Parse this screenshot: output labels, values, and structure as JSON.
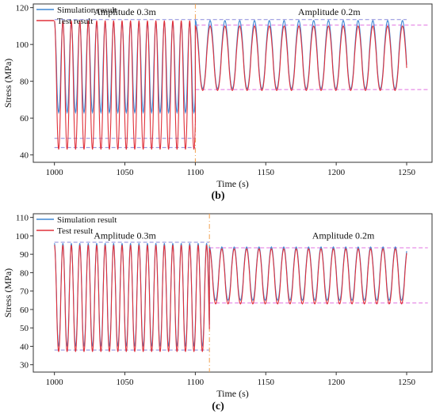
{
  "chart_data": [
    {
      "type": "line",
      "panel_label": "(b)",
      "xlabel": "Time (s)",
      "ylabel": "Stress (MPa)",
      "xlim": [
        985,
        1268
      ],
      "ylim": [
        36,
        122
      ],
      "xticks": [
        1000,
        1050,
        1100,
        1150,
        1200,
        1250
      ],
      "yticks": [
        40,
        60,
        80,
        100,
        120
      ],
      "legend": {
        "placement": "top-left",
        "entries": [
          "Simulation result",
          "Test result"
        ]
      },
      "annotations": [
        {
          "text": "Amplitude 0.3m",
          "x": 1050,
          "y": 116
        },
        {
          "text": "Amplitude 0.2m",
          "x": 1195,
          "y": 116
        }
      ],
      "divider_x": 1100,
      "segments": [
        {
          "x_start": 1000,
          "x_end": 1100,
          "period": 6.0,
          "sim_max": 112,
          "sim_min": 63,
          "test_max": 113,
          "test_min": 43
        },
        {
          "x_start": 1100,
          "x_end": 1250,
          "period": 10.5,
          "sim_max": 113,
          "sim_min": 76,
          "test_max": 110,
          "test_min": 75
        }
      ],
      "reference_lines": [
        {
          "y": 113.5,
          "x_start": 1000,
          "x_end": 1250,
          "color": "#8a8adb"
        },
        {
          "y": 49,
          "x_start": 1000,
          "x_end": 1100,
          "color": "#8a8adb"
        },
        {
          "y": 44,
          "x_start": 1000,
          "x_end": 1100,
          "color": "#8a8adb"
        },
        {
          "y": 110.5,
          "x_start": 1100,
          "x_end": 1265,
          "color": "#e070e0"
        },
        {
          "y": 75.5,
          "x_start": 1100,
          "x_end": 1265,
          "color": "#e070e0"
        }
      ],
      "series": [
        {
          "name": "Simulation result",
          "color": "#3f87d4"
        },
        {
          "name": "Test result",
          "color": "#e0303a"
        }
      ]
    },
    {
      "type": "line",
      "panel_label": "(c)",
      "xlabel": "Time (s)",
      "ylabel": "Stress (MPa)",
      "xlim": [
        985,
        1268
      ],
      "ylim": [
        26,
        112
      ],
      "xticks": [
        1000,
        1050,
        1100,
        1150,
        1200,
        1250
      ],
      "yticks": [
        30,
        40,
        50,
        60,
        70,
        80,
        90,
        100,
        110
      ],
      "legend": {
        "placement": "top-left",
        "entries": [
          "Simulation result",
          "Test result"
        ]
      },
      "annotations": [
        {
          "text": "Amplitude 0.3m",
          "x": 1050,
          "y": 98.5
        },
        {
          "text": "Amplitude 0.2m",
          "x": 1205,
          "y": 98.5
        }
      ],
      "divider_x": 1110,
      "segments": [
        {
          "x_start": 1000,
          "x_end": 1110,
          "period": 6.0,
          "sim_max": 96,
          "sim_min": 40,
          "test_max": 95,
          "test_min": 37
        },
        {
          "x_start": 1110,
          "x_end": 1250,
          "period": 8.8,
          "sim_max": 94,
          "sim_min": 65,
          "test_max": 93,
          "test_min": 63
        }
      ],
      "reference_lines": [
        {
          "y": 96.5,
          "x_start": 1000,
          "x_end": 1110,
          "color": "#8a8adb"
        },
        {
          "y": 38,
          "x_start": 1000,
          "x_end": 1110,
          "color": "#8a8adb"
        },
        {
          "y": 93.5,
          "x_start": 1110,
          "x_end": 1265,
          "color": "#e070e0"
        },
        {
          "y": 63.5,
          "x_start": 1110,
          "x_end": 1265,
          "color": "#e070e0"
        }
      ],
      "series": [
        {
          "name": "Simulation result",
          "color": "#3f87d4"
        },
        {
          "name": "Test result",
          "color": "#e0303a"
        }
      ]
    }
  ]
}
